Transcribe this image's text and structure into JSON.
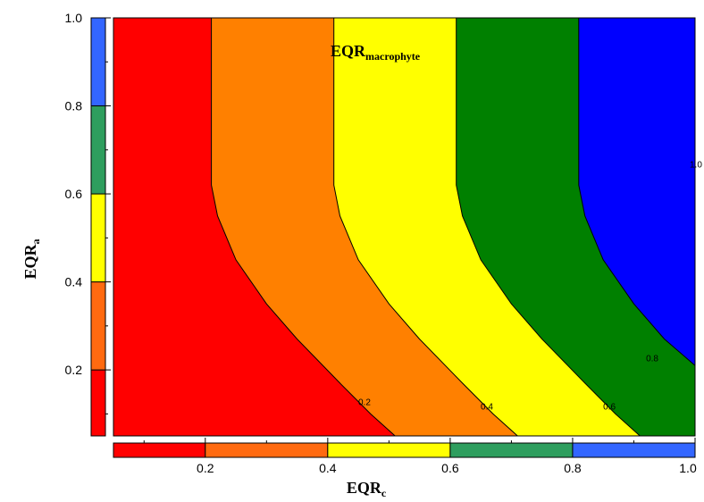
{
  "chart_data": {
    "type": "contour",
    "title_main": "EQR",
    "title_sub": "macrophyte",
    "xlabel_main": "EQR",
    "xlabel_sub": "c",
    "ylabel_main": "EQR",
    "ylabel_sub": "a",
    "xlim": [
      0.05,
      1.0
    ],
    "ylim": [
      0.05,
      1.0
    ],
    "y_ticks": [
      0.2,
      0.4,
      0.6,
      0.8,
      1.0
    ],
    "y_tick_labels": [
      "0.2",
      "0.4",
      "0.6",
      "0.8",
      "1.0"
    ],
    "x_colorbar_ticks": [
      0.2,
      0.4,
      0.6,
      0.8,
      1.0
    ],
    "x_colorbar_tick_labels": [
      "0.2",
      "0.4",
      "0.6",
      "0.8",
      "1.0"
    ],
    "levels": [
      0.2,
      0.4,
      0.6,
      0.8,
      1.0
    ],
    "level_colors": [
      "#ff0000",
      "#ff8000",
      "#ffff00",
      "#008000",
      "#0000ff"
    ],
    "colorbar_colors": [
      "#ff0000",
      "#ff6a10",
      "#ffff00",
      "#2e9e5e",
      "#3366ff"
    ],
    "contours": [
      {
        "level": 0.2,
        "label": "0.2",
        "label_at": [
          0.46,
          0.12
        ],
        "points": [
          [
            0.21,
            1.0
          ],
          [
            0.21,
            0.62
          ],
          [
            0.22,
            0.55
          ],
          [
            0.25,
            0.45
          ],
          [
            0.3,
            0.35
          ],
          [
            0.35,
            0.27
          ],
          [
            0.42,
            0.17
          ],
          [
            0.47,
            0.1
          ],
          [
            0.51,
            0.05
          ]
        ]
      },
      {
        "level": 0.4,
        "label": "0.4",
        "label_at": [
          0.66,
          0.11
        ],
        "points": [
          [
            0.41,
            1.0
          ],
          [
            0.41,
            0.62
          ],
          [
            0.42,
            0.55
          ],
          [
            0.45,
            0.45
          ],
          [
            0.5,
            0.35
          ],
          [
            0.55,
            0.27
          ],
          [
            0.62,
            0.17
          ],
          [
            0.67,
            0.1
          ],
          [
            0.71,
            0.05
          ]
        ]
      },
      {
        "level": 0.6,
        "label": "0.6",
        "label_at": [
          0.86,
          0.11
        ],
        "points": [
          [
            0.61,
            1.0
          ],
          [
            0.61,
            0.62
          ],
          [
            0.62,
            0.55
          ],
          [
            0.65,
            0.45
          ],
          [
            0.7,
            0.35
          ],
          [
            0.75,
            0.27
          ],
          [
            0.82,
            0.17
          ],
          [
            0.87,
            0.1
          ],
          [
            0.91,
            0.05
          ]
        ]
      },
      {
        "level": 0.8,
        "label": "0.8",
        "label_at": [
          0.93,
          0.22
        ],
        "points": [
          [
            0.81,
            1.0
          ],
          [
            0.81,
            0.62
          ],
          [
            0.82,
            0.55
          ],
          [
            0.85,
            0.45
          ],
          [
            0.9,
            0.35
          ],
          [
            0.95,
            0.27
          ],
          [
            1.0,
            0.21
          ]
        ]
      }
    ],
    "edge_label": {
      "text": "1.0",
      "at": [
        1.0,
        0.66
      ]
    }
  }
}
